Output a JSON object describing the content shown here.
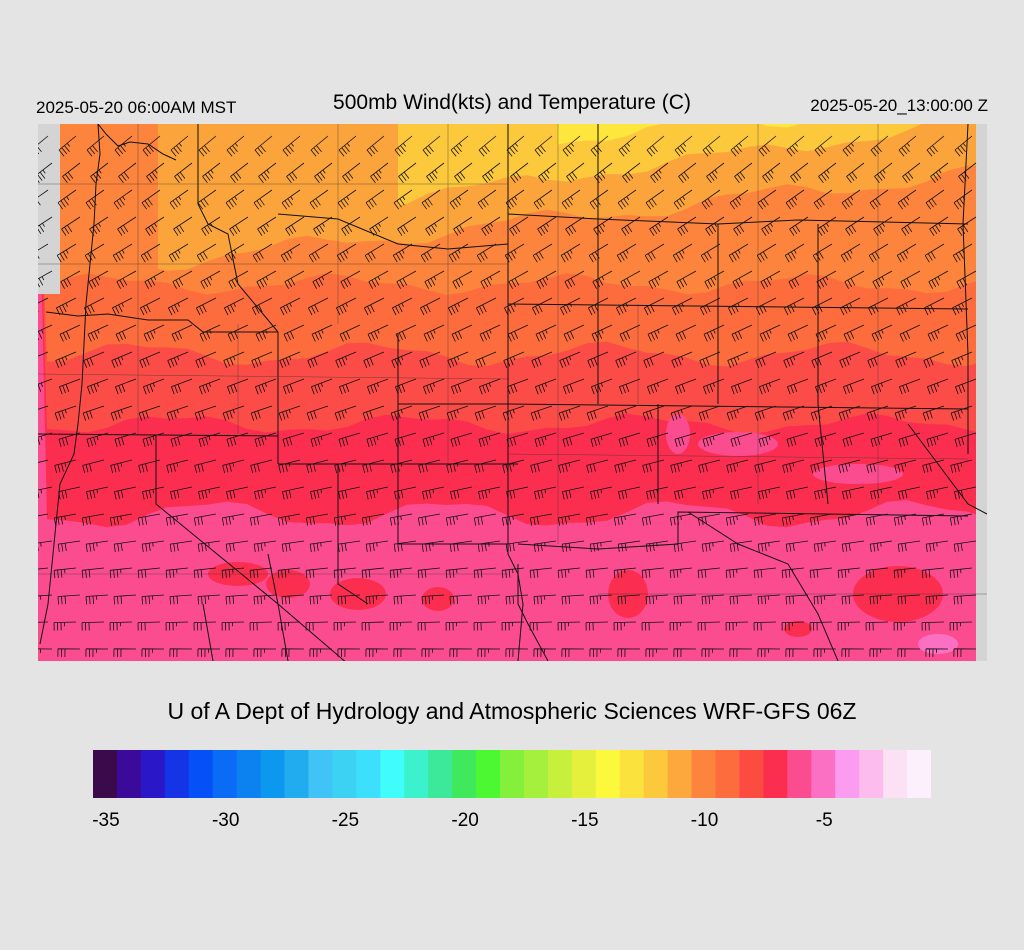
{
  "header": {
    "left": "2025-05-20 06:00AM MST",
    "center": "500mb Wind(kts) and Temperature (C)",
    "right": "2025-05-20_13:00:00 Z"
  },
  "credit": "U of A Dept of Hydrology and Atmospheric Sciences WRF-GFS 06Z",
  "colorbar": {
    "colors": [
      "#3a0a4a",
      "#3c0a9a",
      "#2a18c8",
      "#1434e6",
      "#0650f8",
      "#0a6cf4",
      "#0c82f0",
      "#0c98ee",
      "#22acf0",
      "#40c4f8",
      "#3cd2f4",
      "#3ce0fc",
      "#40fcfa",
      "#3cf2cc",
      "#3ce89a",
      "#40e85c",
      "#4cf832",
      "#84f03c",
      "#a4f03c",
      "#c6f03c",
      "#e4f03c",
      "#fcf83c",
      "#fce23c",
      "#fcc83c",
      "#fca83c",
      "#fc843c",
      "#fc6c3c",
      "#fc4c40",
      "#fc2e50",
      "#fc4c90",
      "#fc70c4",
      "#fc9cf0",
      "#fcbcee",
      "#fce0f4",
      "#fcf0fc"
    ],
    "labels": [
      {
        "text": "-35",
        "index": 1
      },
      {
        "text": "-30",
        "index": 6
      },
      {
        "text": "-25",
        "index": 11
      },
      {
        "text": "-20",
        "index": 16
      },
      {
        "text": "-15",
        "index": 21
      },
      {
        "text": "-10",
        "index": 26
      },
      {
        "text": "-5",
        "index": 31
      }
    ]
  },
  "map_bands": [
    {
      "color": "#fee63c",
      "label": "-14"
    },
    {
      "color": "#fcc83c",
      "label": "-13"
    },
    {
      "color": "#fca43c",
      "label": "-12"
    },
    {
      "color": "#fc843c",
      "label": "-11"
    },
    {
      "color": "#fc6c3c",
      "label": "-10"
    },
    {
      "color": "#fc4c48",
      "label": "-9"
    },
    {
      "color": "#fc2e50",
      "label": "-8"
    },
    {
      "color": "#fc4c90",
      "label": "-7"
    }
  ]
}
